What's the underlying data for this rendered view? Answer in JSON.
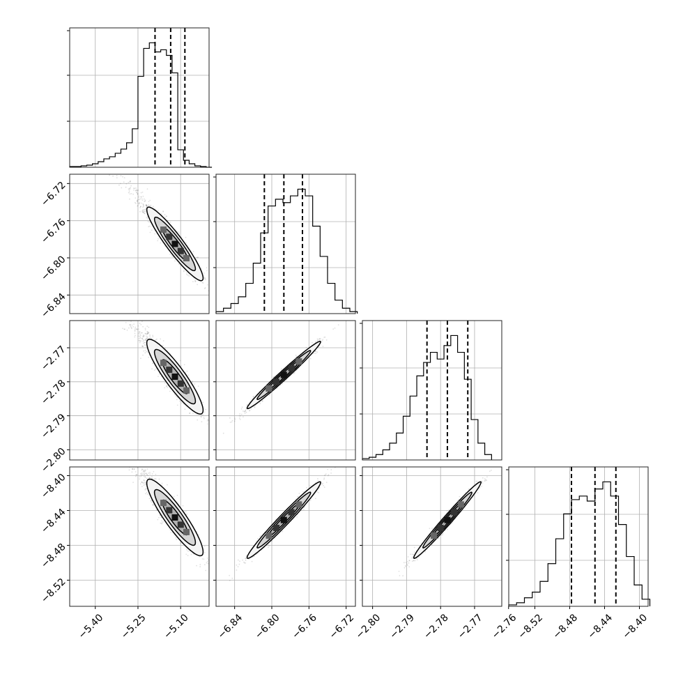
{
  "chart_data": {
    "type": "corner",
    "grid": true,
    "parameters": [
      {
        "index": 0,
        "ticks": [
          -5.4,
          -5.25,
          -5.1
        ],
        "tick_labels": [
          "−5.40",
          "−5.25",
          "−5.10"
        ],
        "range": [
          -5.49,
          -5.0
        ],
        "quantiles": [
          -5.19,
          -5.135,
          -5.085
        ],
        "hist_edges": [
          -5.49,
          -5.47,
          -5.45,
          -5.43,
          -5.41,
          -5.39,
          -5.37,
          -5.35,
          -5.33,
          -5.31,
          -5.29,
          -5.27,
          -5.25,
          -5.23,
          -5.21,
          -5.19,
          -5.17,
          -5.15,
          -5.13,
          -5.11,
          -5.09,
          -5.07,
          -5.05,
          -5.03,
          -5.01,
          -4.99
        ],
        "hist_counts": [
          1,
          1,
          2,
          3,
          5,
          8,
          12,
          15,
          20,
          26,
          35,
          55,
          130,
          170,
          178,
          165,
          168,
          160,
          135,
          25,
          10,
          5,
          2,
          1,
          0
        ]
      },
      {
        "index": 1,
        "ticks": [
          -6.84,
          -6.8,
          -6.76,
          -6.72
        ],
        "tick_labels": [
          "−6.84",
          "−6.80",
          "−6.76",
          "−6.72"
        ],
        "range": [
          -6.86,
          -6.71
        ],
        "quantiles": [
          -6.808,
          -6.787,
          -6.767
        ],
        "hist_edges": [
          -6.86,
          -6.852,
          -6.844,
          -6.836,
          -6.828,
          -6.82,
          -6.812,
          -6.804,
          -6.796,
          -6.788,
          -6.78,
          -6.772,
          -6.764,
          -6.756,
          -6.748,
          -6.74,
          -6.732,
          -6.724,
          -6.716,
          -6.708
        ],
        "hist_counts": [
          3,
          8,
          15,
          25,
          45,
          75,
          120,
          160,
          170,
          165,
          175,
          185,
          175,
          130,
          85,
          45,
          20,
          8,
          3
        ]
      },
      {
        "index": 2,
        "ticks": [
          -2.8,
          -2.79,
          -2.78,
          -2.77,
          -2.76
        ],
        "tick_labels": [
          "−2.80",
          "−2.79",
          "−2.78",
          "−2.77",
          "−2.76"
        ],
        "range": [
          -2.803,
          -2.762
        ],
        "quantiles": [
          -2.784,
          -2.778,
          -2.772
        ],
        "hist_edges": [
          -2.803,
          -2.801,
          -2.799,
          -2.797,
          -2.795,
          -2.793,
          -2.791,
          -2.789,
          -2.787,
          -2.785,
          -2.783,
          -2.781,
          -2.779,
          -2.777,
          -2.775,
          -2.773,
          -2.771,
          -2.769,
          -2.767,
          -2.765
        ],
        "hist_counts": [
          2,
          4,
          8,
          15,
          25,
          40,
          65,
          95,
          125,
          145,
          160,
          150,
          170,
          185,
          160,
          120,
          60,
          25,
          8
        ]
      },
      {
        "index": 3,
        "ticks": [
          -8.52,
          -8.48,
          -8.44,
          -8.4
        ],
        "tick_labels": [
          "−8.52",
          "−8.48",
          "−8.44",
          "−8.40"
        ],
        "range": [
          -8.55,
          -8.39
        ],
        "quantiles": [
          -8.478,
          -8.451,
          -8.427
        ],
        "hist_edges": [
          -8.55,
          -8.541,
          -8.532,
          -8.523,
          -8.514,
          -8.505,
          -8.496,
          -8.487,
          -8.478,
          -8.469,
          -8.46,
          -8.451,
          -8.442,
          -8.433,
          -8.424,
          -8.415,
          -8.406,
          -8.397,
          -8.388
        ],
        "hist_counts": [
          2,
          5,
          12,
          20,
          35,
          60,
          95,
          130,
          150,
          155,
          148,
          165,
          175,
          155,
          115,
          70,
          30,
          10
        ]
      }
    ],
    "pairs": [
      {
        "row": 1,
        "col": 0,
        "center": [
          -5.12,
          -6.785
        ],
        "sd": [
          0.045,
          0.018
        ],
        "corr": -0.93
      },
      {
        "row": 2,
        "col": 0,
        "center": [
          -5.12,
          -2.7785
        ],
        "sd": [
          0.045,
          0.005
        ],
        "corr": -0.9
      },
      {
        "row": 2,
        "col": 1,
        "center": [
          -6.787,
          -2.778
        ],
        "sd": [
          0.018,
          0.0045
        ],
        "corr": 0.985
      },
      {
        "row": 3,
        "col": 0,
        "center": [
          -5.12,
          -8.448
        ],
        "sd": [
          0.045,
          0.02
        ],
        "corr": -0.9
      },
      {
        "row": 3,
        "col": 1,
        "center": [
          -6.787,
          -8.451
        ],
        "sd": [
          0.018,
          0.02
        ],
        "corr": 0.98
      },
      {
        "row": 3,
        "col": 2,
        "center": [
          -2.778,
          -8.451
        ],
        "sd": [
          0.0045,
          0.02
        ],
        "corr": 0.985
      }
    ]
  }
}
